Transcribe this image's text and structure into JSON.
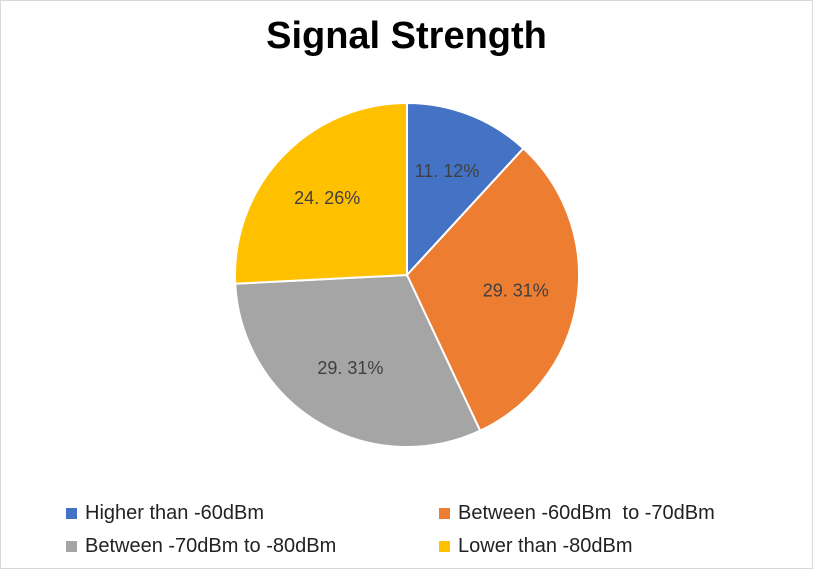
{
  "chart_data": {
    "type": "pie",
    "title": "Signal Strength",
    "slices": [
      {
        "label": "Higher than -60dBm",
        "value": 11.12,
        "data_label": "11. 12%",
        "color": "#4472C4"
      },
      {
        "label": "Between -60dBm  to -70dBm",
        "value": 29.31,
        "data_label": "29. 31%",
        "color": "#ED7D31"
      },
      {
        "label": "Between -70dBm to -80dBm",
        "value": 29.31,
        "data_label": "29. 31%",
        "color": "#A5A5A5"
      },
      {
        "label": "Lower than -80dBm",
        "value": 24.26,
        "data_label": "24. 26%",
        "color": "#FFC000"
      }
    ],
    "legend_position": "bottom",
    "start_angle": "top, clockwise"
  }
}
